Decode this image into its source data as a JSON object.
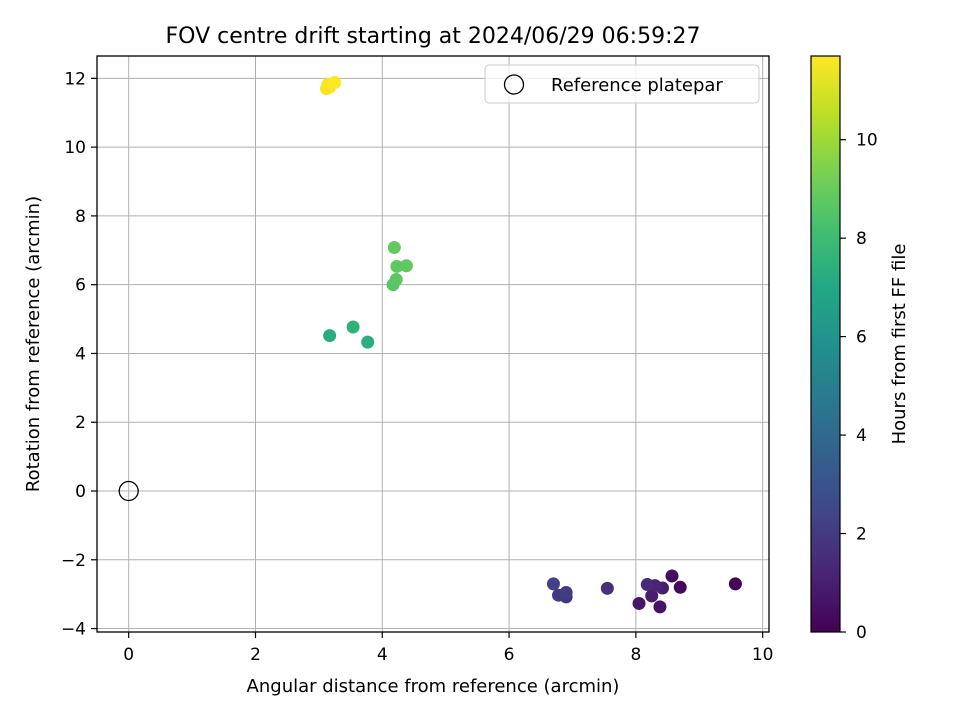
{
  "chart_data": {
    "type": "scatter",
    "title": "FOV centre drift starting at 2024/06/29 06:59:27",
    "xlabel": "Angular distance from reference (arcmin)",
    "ylabel": "Rotation from reference (arcmin)",
    "xlim": [
      -0.5,
      10.1
    ],
    "ylim": [
      -4.1,
      12.65
    ],
    "xticks": [
      0,
      2,
      4,
      6,
      8,
      10
    ],
    "yticks": [
      -4,
      -2,
      0,
      2,
      4,
      6,
      8,
      10,
      12
    ],
    "grid": true,
    "legend": {
      "placement": "top-right",
      "label": "Reference platepar"
    },
    "reference_point": {
      "x": 0,
      "y": 0
    },
    "colorbar": {
      "label": "Hours from first FF file",
      "colormap": "viridis",
      "range": [
        0,
        11.7
      ],
      "ticks": [
        0,
        2,
        4,
        6,
        8,
        10
      ]
    },
    "points": [
      {
        "x": 9.57,
        "y": -2.7,
        "hours": 0.1
      },
      {
        "x": 8.7,
        "y": -2.8,
        "hours": 0.3
      },
      {
        "x": 8.57,
        "y": -2.47,
        "hours": 0.4
      },
      {
        "x": 8.38,
        "y": -3.37,
        "hours": 0.6
      },
      {
        "x": 8.05,
        "y": -3.27,
        "hours": 0.7
      },
      {
        "x": 8.25,
        "y": -3.05,
        "hours": 0.9
      },
      {
        "x": 8.42,
        "y": -2.82,
        "hours": 1.0
      },
      {
        "x": 8.3,
        "y": -2.75,
        "hours": 1.2
      },
      {
        "x": 8.18,
        "y": -2.72,
        "hours": 1.4
      },
      {
        "x": 7.55,
        "y": -2.83,
        "hours": 1.6
      },
      {
        "x": 6.9,
        "y": -3.08,
        "hours": 1.8
      },
      {
        "x": 6.78,
        "y": -3.03,
        "hours": 1.9
      },
      {
        "x": 6.9,
        "y": -2.95,
        "hours": 2.1
      },
      {
        "x": 6.7,
        "y": -2.7,
        "hours": 2.3
      },
      {
        "x": 3.17,
        "y": 4.52,
        "hours": 7.2
      },
      {
        "x": 3.77,
        "y": 4.33,
        "hours": 7.3
      },
      {
        "x": 3.54,
        "y": 4.77,
        "hours": 7.5
      },
      {
        "x": 4.17,
        "y": 6.0,
        "hours": 8.6
      },
      {
        "x": 4.22,
        "y": 6.15,
        "hours": 8.7
      },
      {
        "x": 4.23,
        "y": 6.53,
        "hours": 8.8
      },
      {
        "x": 4.38,
        "y": 6.55,
        "hours": 8.8
      },
      {
        "x": 4.19,
        "y": 7.08,
        "hours": 8.9
      },
      {
        "x": 3.12,
        "y": 11.7,
        "hours": 11.5
      },
      {
        "x": 3.17,
        "y": 11.75,
        "hours": 11.6
      },
      {
        "x": 3.14,
        "y": 11.82,
        "hours": 11.6
      },
      {
        "x": 3.25,
        "y": 11.88,
        "hours": 11.7
      }
    ]
  }
}
